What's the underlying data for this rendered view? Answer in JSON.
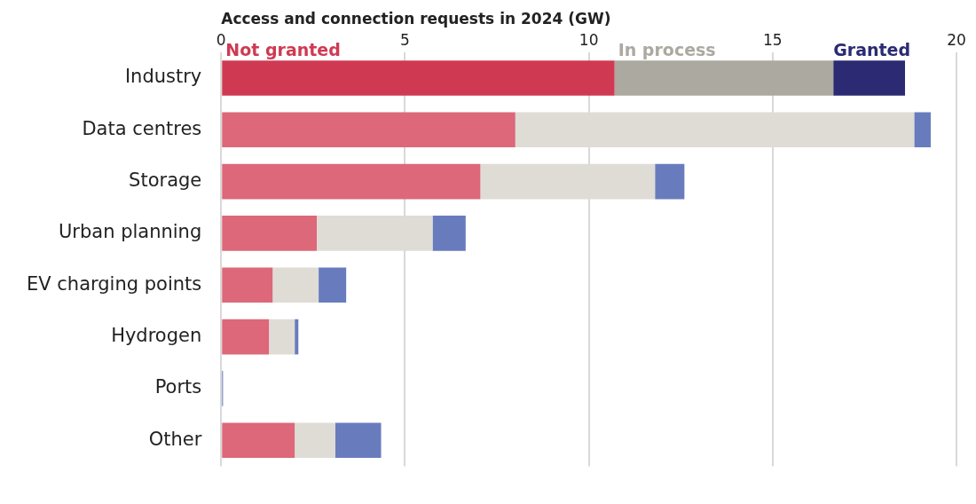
{
  "chart_data": {
    "type": "bar",
    "orientation": "horizontal",
    "stacked": true,
    "xlabel": "Access and connection requests in 2024 (GW)",
    "categories": [
      "Industry",
      "Data centres",
      "Storage",
      "Urban planning",
      "EV charging points",
      "Hydrogen",
      "Ports",
      "Other"
    ],
    "series": [
      {
        "name": "Not granted",
        "color": "#cf3a52",
        "colors": [
          "#cf3a52",
          "#dc6879",
          "#dc6879",
          "#dc6879",
          "#dc6879",
          "#dc6879",
          "#dc6879",
          "#dc6879"
        ],
        "values": [
          10.7,
          8.0,
          7.05,
          2.6,
          1.4,
          1.3,
          0,
          2.0
        ]
      },
      {
        "name": "In process",
        "color": "#aca9a1",
        "colors": [
          "#aca9a1",
          "#dfdcd6",
          "#dfdcd6",
          "#dfdcd6",
          "#dfdcd6",
          "#dfdcd6",
          "#dfdcd6",
          "#dfdcd6"
        ],
        "values": [
          5.95,
          10.85,
          4.75,
          3.15,
          1.25,
          0.7,
          0,
          1.1
        ]
      },
      {
        "name": "Granted",
        "color": "#2b2a73",
        "colors": [
          "#2b2a73",
          "#687cbd",
          "#687cbd",
          "#687cbd",
          "#687cbd",
          "#687cbd",
          "#687cbd",
          "#687cbd"
        ],
        "values": [
          1.95,
          0.45,
          0.8,
          0.9,
          0.75,
          0.1,
          0.05,
          1.25
        ]
      }
    ],
    "xlim": [
      0,
      20
    ],
    "xticks": [
      0,
      5,
      10,
      15,
      20
    ],
    "grid": "x"
  }
}
